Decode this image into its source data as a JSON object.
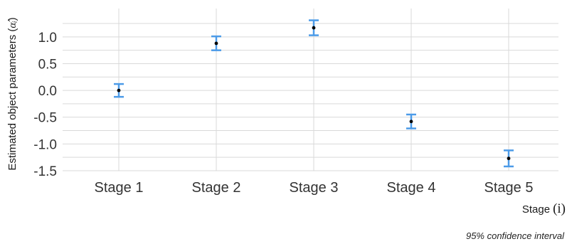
{
  "chart_data": {
    "type": "scatter",
    "title": "",
    "ylabel": "Estimated object parameters (",
    "ylabel_symbol": "α̂ᵢ",
    "ylabel_close": ")",
    "xlabel": "Stage",
    "xlabel_symbol": "(i)",
    "caption": "95% confidence interval",
    "categories": [
      "Stage 1",
      "Stage 2",
      "Stage 3",
      "Stage 4",
      "Stage 5"
    ],
    "values": [
      0.0,
      0.88,
      1.17,
      -0.58,
      -1.27
    ],
    "ci_lower": [
      -0.12,
      0.75,
      1.03,
      -0.71,
      -1.42
    ],
    "ci_upper": [
      0.12,
      1.01,
      1.31,
      -0.45,
      -1.12
    ],
    "yticks": [
      1.0,
      0.5,
      0.0,
      -0.5,
      -1.0,
      -1.5
    ],
    "ytick_labels": [
      "1.0",
      "0.5",
      "0.0",
      "-0.5",
      "-1.0",
      "-1.5"
    ],
    "ylim": [
      -1.5,
      1.45
    ],
    "grid": true,
    "colors": {
      "errorbar": "#4c9be8",
      "point": "#000000",
      "grid": "#d9d9d9"
    }
  }
}
